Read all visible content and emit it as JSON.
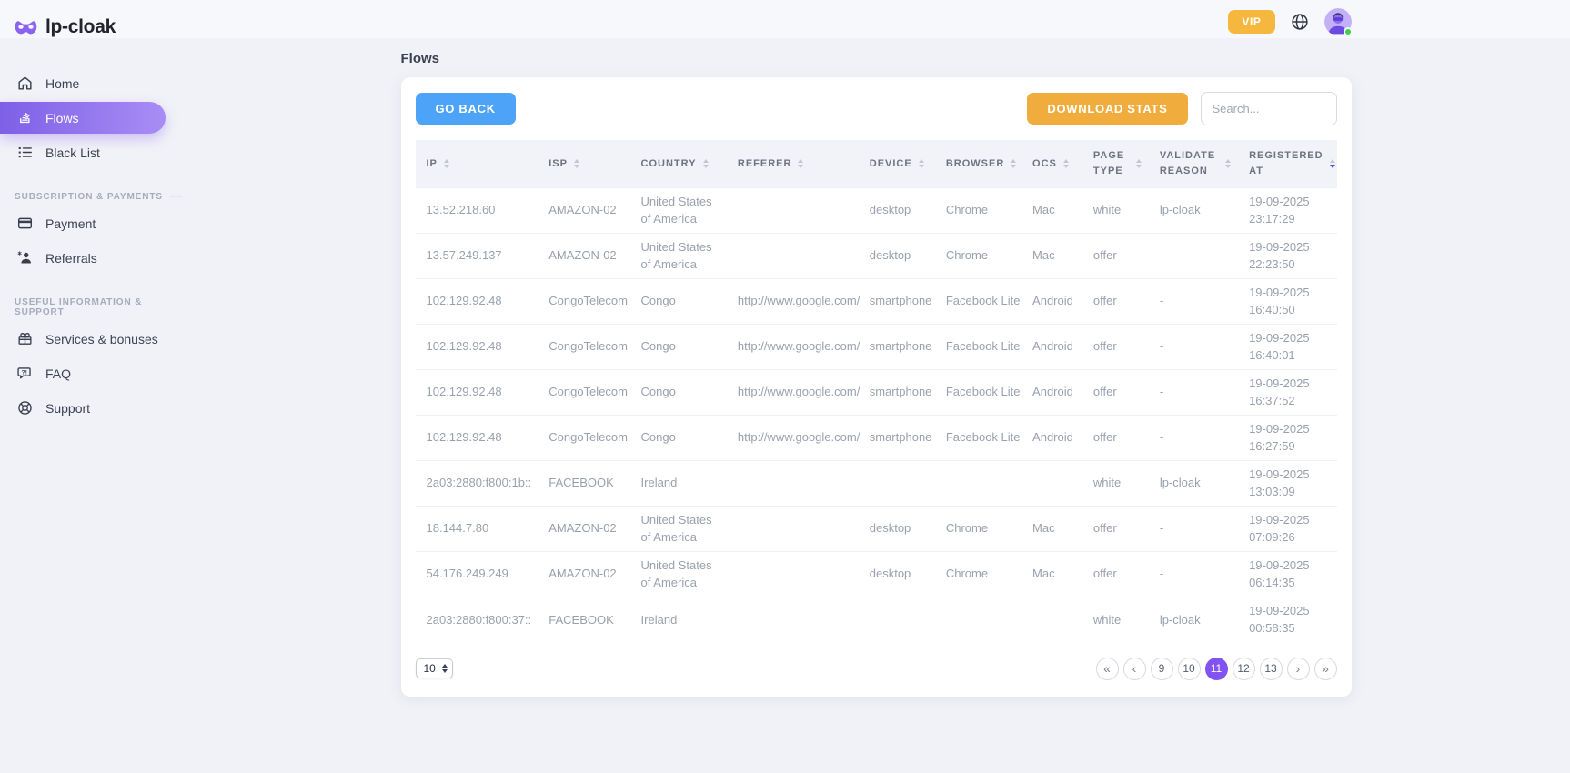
{
  "brand": {
    "name": "lp-cloak"
  },
  "topbar": {
    "vip_label": "VIP"
  },
  "sidebar": {
    "main_items": [
      {
        "label": "Home",
        "icon": "home-icon",
        "active": false
      },
      {
        "label": "Flows",
        "icon": "flows-icon",
        "active": true
      },
      {
        "label": "Black List",
        "icon": "black-list-icon",
        "active": false
      }
    ],
    "section1": {
      "title": "Subscription & payments",
      "items": [
        {
          "label": "Payment",
          "icon": "payment-card-icon"
        },
        {
          "label": "Referrals",
          "icon": "referrals-person-icon"
        }
      ]
    },
    "section2": {
      "title": "Useful information & support",
      "items": [
        {
          "label": "Services & bonuses",
          "icon": "gift-icon"
        },
        {
          "label": "FAQ",
          "icon": "faq-bubble-icon"
        },
        {
          "label": "Support",
          "icon": "support-lifebuoy-icon"
        }
      ]
    }
  },
  "page": {
    "title": "Flows"
  },
  "toolbar": {
    "go_back": "GO BACK",
    "download_stats": "DOWNLOAD STATS",
    "search_placeholder": "Search..."
  },
  "table": {
    "columns": [
      {
        "key": "ip",
        "label": "IP",
        "width": "13.5%",
        "sorted": ""
      },
      {
        "key": "isp",
        "label": "ISP",
        "width": "10%",
        "sorted": ""
      },
      {
        "key": "country",
        "label": "COUNTRY",
        "width": "10.5%",
        "sorted": ""
      },
      {
        "key": "referer",
        "label": "REFERER",
        "width": "14.3%",
        "sorted": ""
      },
      {
        "key": "device",
        "label": "DEVICE",
        "width": "8.3%",
        "sorted": ""
      },
      {
        "key": "browser",
        "label": "BROWSER",
        "width": "9.4%",
        "sorted": ""
      },
      {
        "key": "ocs",
        "label": "OCS",
        "width": "6.6%",
        "sorted": ""
      },
      {
        "key": "page_type",
        "label": "PAGE TYPE",
        "width": "7.2%",
        "sorted": ""
      },
      {
        "key": "validate_reason",
        "label": "VALIDATE REASON",
        "width": "9.7%",
        "sorted": ""
      },
      {
        "key": "registered",
        "label": "REGISTERED AT",
        "width": "10.5%",
        "sorted": "desc"
      }
    ],
    "rows": [
      {
        "ip": "13.52.218.60",
        "isp": "AMAZON-02",
        "country": "United States of America",
        "referer": "",
        "device": "desktop",
        "browser": "Chrome",
        "ocs": "Mac",
        "page_type": "white",
        "validate_reason": "lp-cloak",
        "registered_date": "19-09-2025",
        "registered_time": "23:17:29"
      },
      {
        "ip": "13.57.249.137",
        "isp": "AMAZON-02",
        "country": "United States of America",
        "referer": "",
        "device": "desktop",
        "browser": "Chrome",
        "ocs": "Mac",
        "page_type": "offer",
        "validate_reason": "-",
        "registered_date": "19-09-2025",
        "registered_time": "22:23:50"
      },
      {
        "ip": "102.129.92.48",
        "isp": "CongoTelecom",
        "country": "Congo",
        "referer": "http://www.google.com/",
        "device": "smartphone",
        "browser": "Facebook Lite",
        "ocs": "Android",
        "page_type": "offer",
        "validate_reason": "-",
        "registered_date": "19-09-2025",
        "registered_time": "16:40:50"
      },
      {
        "ip": "102.129.92.48",
        "isp": "CongoTelecom",
        "country": "Congo",
        "referer": "http://www.google.com/",
        "device": "smartphone",
        "browser": "Facebook Lite",
        "ocs": "Android",
        "page_type": "offer",
        "validate_reason": "-",
        "registered_date": "19-09-2025",
        "registered_time": "16:40:01"
      },
      {
        "ip": "102.129.92.48",
        "isp": "CongoTelecom",
        "country": "Congo",
        "referer": "http://www.google.com/",
        "device": "smartphone",
        "browser": "Facebook Lite",
        "ocs": "Android",
        "page_type": "offer",
        "validate_reason": "-",
        "registered_date": "19-09-2025",
        "registered_time": "16:37:52"
      },
      {
        "ip": "102.129.92.48",
        "isp": "CongoTelecom",
        "country": "Congo",
        "referer": "http://www.google.com/",
        "device": "smartphone",
        "browser": "Facebook Lite",
        "ocs": "Android",
        "page_type": "offer",
        "validate_reason": "-",
        "registered_date": "19-09-2025",
        "registered_time": "16:27:59"
      },
      {
        "ip": "2a03:2880:f800:1b::",
        "isp": "FACEBOOK",
        "country": "Ireland",
        "referer": "",
        "device": "",
        "browser": "",
        "ocs": "",
        "page_type": "white",
        "validate_reason": "lp-cloak",
        "registered_date": "19-09-2025",
        "registered_time": "13:03:09"
      },
      {
        "ip": "18.144.7.80",
        "isp": "AMAZON-02",
        "country": "United States of America",
        "referer": "",
        "device": "desktop",
        "browser": "Chrome",
        "ocs": "Mac",
        "page_type": "offer",
        "validate_reason": "-",
        "registered_date": "19-09-2025",
        "registered_time": "07:09:26"
      },
      {
        "ip": "54.176.249.249",
        "isp": "AMAZON-02",
        "country": "United States of America",
        "referer": "",
        "device": "desktop",
        "browser": "Chrome",
        "ocs": "Mac",
        "page_type": "offer",
        "validate_reason": "-",
        "registered_date": "19-09-2025",
        "registered_time": "06:14:35"
      },
      {
        "ip": "2a03:2880:f800:37::",
        "isp": "FACEBOOK",
        "country": "Ireland",
        "referer": "",
        "device": "",
        "browser": "",
        "ocs": "",
        "page_type": "white",
        "validate_reason": "lp-cloak",
        "registered_date": "19-09-2025",
        "registered_time": "00:58:35"
      }
    ]
  },
  "pagination": {
    "page_size": "10",
    "first": "«",
    "prev": "‹",
    "next": "›",
    "last": "»",
    "pages": [
      "9",
      "10",
      "11",
      "12",
      "13"
    ],
    "active_page": "11"
  },
  "icons": {
    "logo": "mask-icon",
    "topbar": [
      "globe-icon",
      "avatar"
    ],
    "table_header": "sort-arrows-icon"
  },
  "colors": {
    "active_nav_gradient_start": "#7d60e7",
    "active_nav_gradient_end": "#a98df5",
    "vip_orange": "#f5b73e",
    "go_back_blue": "#4da3f7",
    "download_orange": "#f0ad3d",
    "active_page_purple": "#8153f0",
    "sort_active_blue": "#4d4fe0",
    "status_green": "#3ecf4a",
    "background": "#f1f2f7"
  }
}
